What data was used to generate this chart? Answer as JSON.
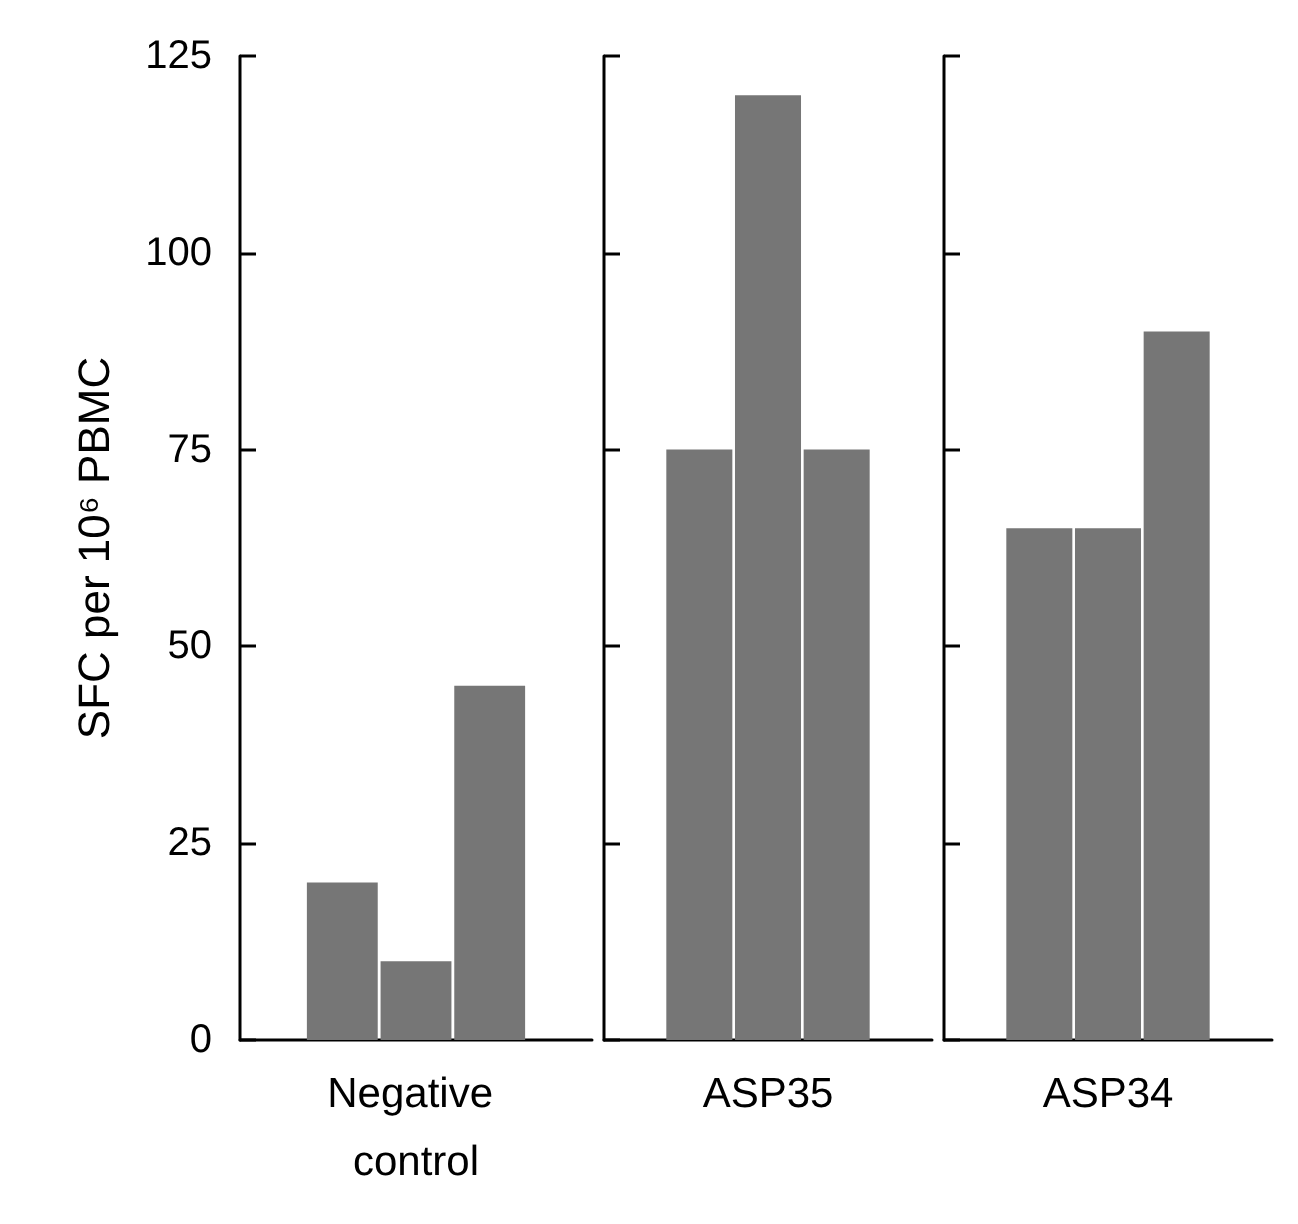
{
  "chart_data": [
    {
      "type": "bar",
      "ylabel": "SFC per 10⁶ PBMC",
      "categories": [
        "Negative control"
      ],
      "ylim": [
        0,
        125
      ],
      "yticks": [
        0,
        25,
        50,
        75,
        100,
        125
      ],
      "series": [
        {
          "color": "#767676",
          "values": [
            20
          ]
        },
        {
          "color": "#767676",
          "values": [
            10
          ]
        },
        {
          "color": "#767676",
          "values": [
            45
          ]
        }
      ]
    },
    {
      "type": "bar",
      "categories": [
        "ASP35"
      ],
      "ylim": [
        0,
        125
      ],
      "yticks": [
        0,
        25,
        50,
        75,
        100,
        125
      ],
      "tick_labels": "x",
      "series": [
        {
          "color": "#767676",
          "values": [
            75
          ]
        },
        {
          "color": "#767676",
          "values": [
            120
          ]
        },
        {
          "color": "#767676",
          "values": [
            75
          ]
        }
      ]
    },
    {
      "type": "bar",
      "categories": [
        "ASP34"
      ],
      "ylim": [
        0,
        125
      ],
      "yticks": [
        0,
        25,
        50,
        75,
        100,
        125
      ],
      "tick_labels": "x",
      "series": [
        {
          "color": "#767676",
          "values": [
            65
          ]
        },
        {
          "color": "#767676",
          "values": [
            65
          ]
        },
        {
          "color": "#767676",
          "values": [
            90
          ]
        }
      ]
    }
  ]
}
